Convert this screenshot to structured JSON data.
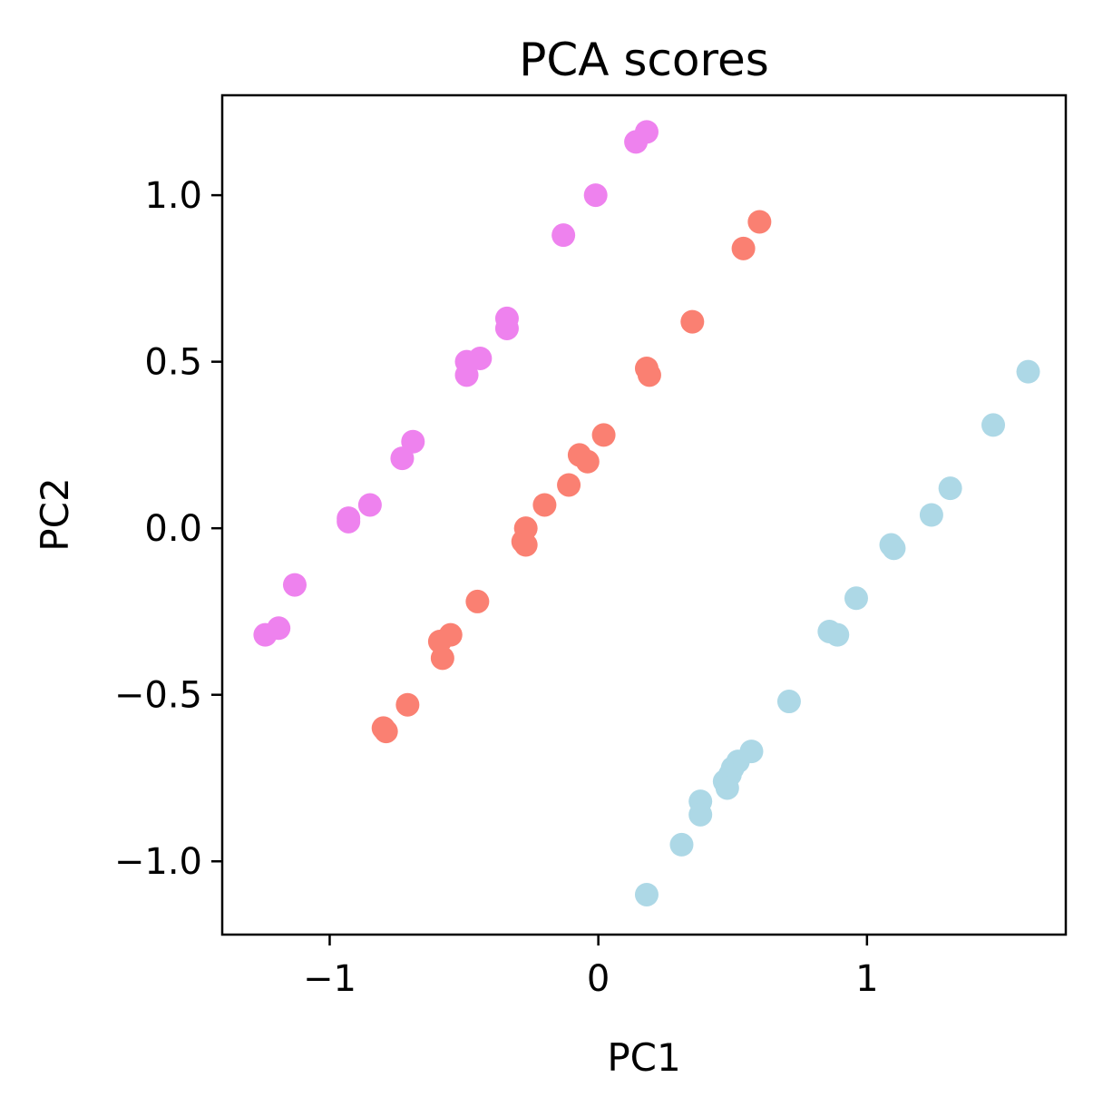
{
  "chart_data": {
    "type": "scatter",
    "title": "PCA scores",
    "xlabel": "PC1",
    "ylabel": "PC2",
    "xlim": [
      -1.4,
      1.74
    ],
    "ylim": [
      -1.22,
      1.3
    ],
    "xticks": [
      {
        "value": -1,
        "label": "−1"
      },
      {
        "value": 0,
        "label": "0"
      },
      {
        "value": 1,
        "label": "1"
      }
    ],
    "yticks": [
      {
        "value": 1.0,
        "label": "1.0"
      },
      {
        "value": 0.5,
        "label": "0.5"
      },
      {
        "value": 0.0,
        "label": "0.0"
      },
      {
        "value": -0.5,
        "label": "−0.5"
      },
      {
        "value": -1.0,
        "label": "−1.0"
      }
    ],
    "grid": false,
    "legend": "none",
    "series": [
      {
        "color": "#ee82ee",
        "points": [
          [
            0.18,
            1.19
          ],
          [
            0.14,
            1.16
          ],
          [
            -0.01,
            1.0
          ],
          [
            -0.13,
            0.88
          ],
          [
            -0.34,
            0.63
          ],
          [
            -0.34,
            0.6
          ],
          [
            -0.44,
            0.51
          ],
          [
            -0.49,
            0.5
          ],
          [
            -0.49,
            0.46
          ],
          [
            -0.69,
            0.26
          ],
          [
            -0.73,
            0.21
          ],
          [
            -0.85,
            0.07
          ],
          [
            -0.93,
            0.03
          ],
          [
            -0.93,
            0.02
          ],
          [
            -1.13,
            -0.17
          ],
          [
            -1.19,
            -0.3
          ],
          [
            -1.24,
            -0.32
          ]
        ]
      },
      {
        "color": "#fa8072",
        "points": [
          [
            0.6,
            0.92
          ],
          [
            0.54,
            0.84
          ],
          [
            0.35,
            0.62
          ],
          [
            0.18,
            0.48
          ],
          [
            0.19,
            0.46
          ],
          [
            0.02,
            0.28
          ],
          [
            -0.07,
            0.22
          ],
          [
            -0.04,
            0.2
          ],
          [
            -0.11,
            0.13
          ],
          [
            -0.2,
            0.07
          ],
          [
            -0.27,
            0.0
          ],
          [
            -0.28,
            -0.04
          ],
          [
            -0.27,
            -0.05
          ],
          [
            -0.45,
            -0.22
          ],
          [
            -0.55,
            -0.32
          ],
          [
            -0.59,
            -0.34
          ],
          [
            -0.58,
            -0.39
          ],
          [
            -0.71,
            -0.53
          ],
          [
            -0.8,
            -0.6
          ],
          [
            -0.79,
            -0.61
          ]
        ]
      },
      {
        "color": "#add8e6",
        "points": [
          [
            1.6,
            0.47
          ],
          [
            1.47,
            0.31
          ],
          [
            1.31,
            0.12
          ],
          [
            1.24,
            0.04
          ],
          [
            1.09,
            -0.05
          ],
          [
            1.1,
            -0.06
          ],
          [
            0.96,
            -0.21
          ],
          [
            0.86,
            -0.31
          ],
          [
            0.89,
            -0.32
          ],
          [
            0.71,
            -0.52
          ],
          [
            0.57,
            -0.67
          ],
          [
            0.52,
            -0.7
          ],
          [
            0.5,
            -0.72
          ],
          [
            0.49,
            -0.74
          ],
          [
            0.47,
            -0.76
          ],
          [
            0.48,
            -0.78
          ],
          [
            0.38,
            -0.82
          ],
          [
            0.38,
            -0.86
          ],
          [
            0.31,
            -0.95
          ],
          [
            0.18,
            -1.1
          ]
        ]
      }
    ]
  }
}
